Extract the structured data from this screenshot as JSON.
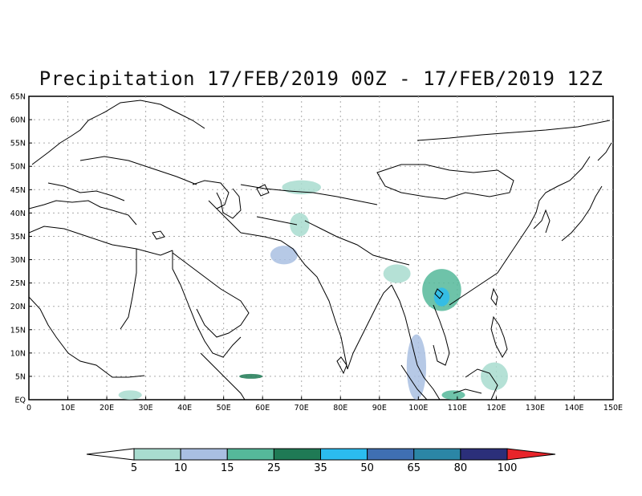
{
  "title": "Precipitation 17/FEB/2019 00Z - 17/FEB/2019 12Z",
  "map": {
    "lat_labels": [
      "65N",
      "60N",
      "55N",
      "50N",
      "45N",
      "40N",
      "35N",
      "30N",
      "25N",
      "20N",
      "15N",
      "10N",
      "5N",
      "EQ"
    ],
    "lon_labels": [
      "0",
      "10E",
      "20E",
      "30E",
      "40E",
      "50E",
      "60E",
      "70E",
      "80E",
      "90E",
      "100E",
      "110E",
      "120E",
      "130E",
      "140E",
      "150E"
    ]
  },
  "legend": {
    "ticks": [
      "5",
      "10",
      "15",
      "25",
      "35",
      "50",
      "65",
      "80",
      "100"
    ],
    "colors": [
      "#ffffff",
      "#a8dccf",
      "#a9bfe2",
      "#55b89a",
      "#1f7a55",
      "#2bbcef",
      "#3f6fb3",
      "#2b86a6",
      "#2b2f7a",
      "#e8242a"
    ]
  },
  "precip_areas": [
    {
      "lon": [
        65,
        75
      ],
      "lat": [
        44,
        47
      ],
      "level": "5"
    },
    {
      "lon": [
        67,
        72
      ],
      "lat": [
        35,
        40
      ],
      "level": "5"
    },
    {
      "lon": [
        62,
        69
      ],
      "lat": [
        29,
        33
      ],
      "level": "10"
    },
    {
      "lon": [
        54,
        60
      ],
      "lat": [
        4.5,
        5.5
      ],
      "level": "25"
    },
    {
      "lon": [
        23,
        29
      ],
      "lat": [
        0,
        2
      ],
      "level": "5"
    },
    {
      "lon": [
        91,
        98
      ],
      "lat": [
        25,
        29
      ],
      "level": "5"
    },
    {
      "lon": [
        101,
        111
      ],
      "lat": [
        19,
        28
      ],
      "level": "15"
    },
    {
      "lon": [
        104,
        108
      ],
      "lat": [
        20,
        24
      ],
      "level": "35"
    },
    {
      "lon": [
        97,
        102
      ],
      "lat": [
        0,
        14
      ],
      "level": "10"
    },
    {
      "lon": [
        106,
        112
      ],
      "lat": [
        0,
        2
      ],
      "level": "15"
    },
    {
      "lon": [
        116,
        123
      ],
      "lat": [
        2,
        8
      ],
      "level": "5"
    }
  ]
}
